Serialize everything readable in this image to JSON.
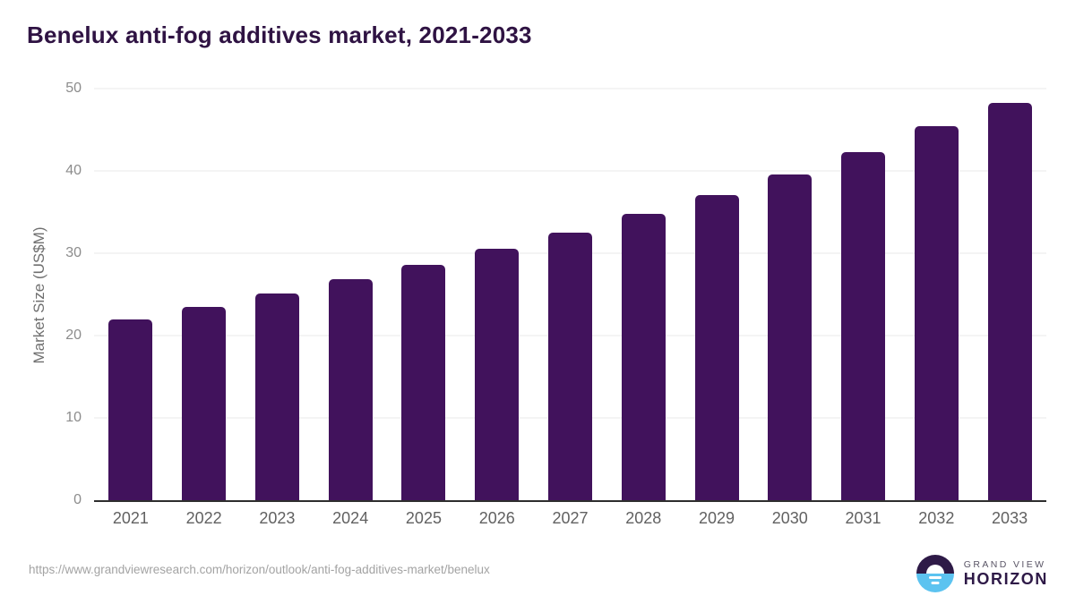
{
  "page": {
    "title": "Benelux anti-fog additives market, 2021-2033"
  },
  "chart_data": {
    "type": "bar",
    "title": "Benelux anti-fog additives market, 2021-2033",
    "categories": [
      "2021",
      "2022",
      "2023",
      "2024",
      "2025",
      "2026",
      "2027",
      "2028",
      "2029",
      "2030",
      "2031",
      "2032",
      "2033"
    ],
    "values": [
      22.0,
      23.5,
      25.1,
      26.8,
      28.6,
      30.5,
      32.5,
      34.8,
      37.1,
      39.6,
      42.3,
      45.4,
      48.3
    ],
    "xlabel": "",
    "ylabel": "Market Size (US$M)",
    "ylim": [
      0,
      50
    ],
    "yticks": [
      0,
      10,
      20,
      30,
      40,
      50
    ],
    "grid": true,
    "legend": false,
    "bar_color": "#41125c",
    "gridline_color": "#e9e9e9",
    "axis_line_color": "#2e2e2e",
    "title_color": "#2f1343"
  },
  "footer": {
    "source_url": "https://www.grandviewresearch.com/horizon/outlook/anti-fog-additives-market/benelux",
    "logo": {
      "top_text": "GRAND VIEW",
      "bottom_text": "HORIZON",
      "circle_top_color": "#2e1a47",
      "circle_bottom_color": "#5cc3f0"
    }
  }
}
